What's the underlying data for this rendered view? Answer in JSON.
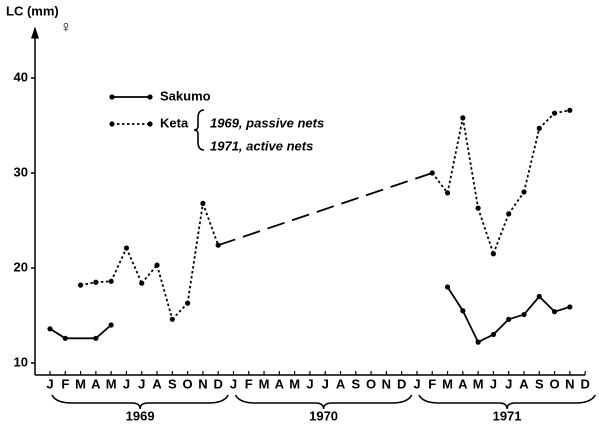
{
  "chart_data": {
    "type": "line",
    "y_label": "LC (mm)",
    "sex_symbol": "♀",
    "categories": [
      "J",
      "F",
      "M",
      "A",
      "M",
      "J",
      "J",
      "A",
      "S",
      "O",
      "N",
      "D",
      "J",
      "F",
      "M",
      "A",
      "M",
      "J",
      "J",
      "A",
      "S",
      "O",
      "N",
      "D",
      "J",
      "F",
      "M",
      "A",
      "M",
      "J",
      "J",
      "A",
      "S",
      "O",
      "N",
      "D"
    ],
    "years": [
      "1969",
      "1970",
      "1971"
    ],
    "ylim": [
      10,
      45
    ],
    "yticks": [
      10,
      20,
      30,
      40
    ],
    "series": [
      {
        "name": "Sakumo",
        "color": "#000000",
        "dash": "solid",
        "bridge_gaps": false,
        "values": [
          13.6,
          12.6,
          null,
          12.6,
          14.0,
          null,
          null,
          null,
          null,
          null,
          null,
          null,
          null,
          null,
          null,
          null,
          null,
          null,
          null,
          null,
          null,
          null,
          null,
          null,
          null,
          null,
          18.0,
          15.5,
          12.2,
          13.0,
          14.6,
          15.1,
          17.0,
          15.4,
          15.9,
          null
        ]
      },
      {
        "name": "Keta",
        "color": "#000000",
        "dash": "dotted",
        "bridge_gaps": true,
        "values": [
          null,
          null,
          18.2,
          18.5,
          18.6,
          22.1,
          18.4,
          20.3,
          14.6,
          16.3,
          26.8,
          22.4,
          null,
          null,
          null,
          null,
          null,
          null,
          null,
          null,
          null,
          null,
          null,
          null,
          null,
          30.0,
          27.9,
          35.8,
          26.3,
          21.5,
          25.7,
          28.0,
          34.7,
          36.3,
          36.6,
          null
        ]
      }
    ],
    "keta_notes": [
      "1969, passive nets",
      "1971, active nets"
    ]
  }
}
